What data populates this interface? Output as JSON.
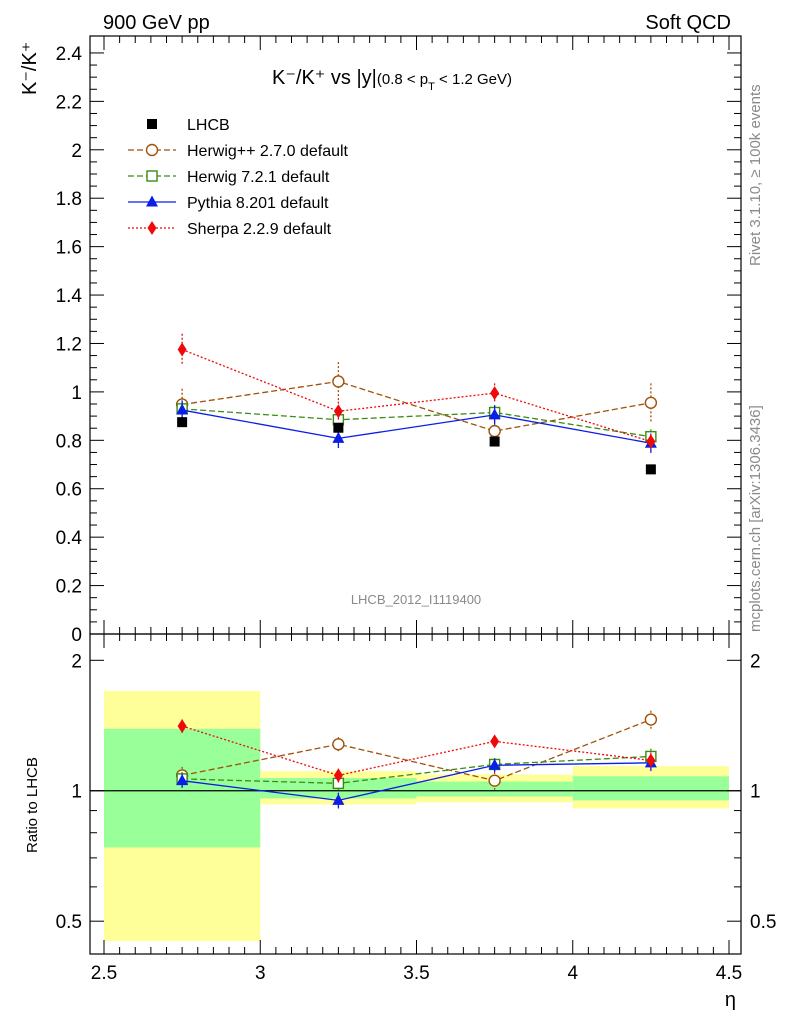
{
  "header": {
    "left": "900 GeV pp",
    "right": "Soft QCD"
  },
  "side_text": {
    "rivet": "Rivet 3.1.10, ≥ 100k events",
    "mcplots": "mcplots.cern.ch [arXiv:1306.3436]"
  },
  "colors": {
    "lhcb": "#000000",
    "herwigpp": "#a0520a",
    "herwig7": "#3a8c12",
    "pythia": "#0a1ee6",
    "sherpa": "#ee0a0a",
    "band_inner": "#99ff99",
    "band_outer": "#ffff99"
  },
  "chart_data": [
    {
      "type": "line",
      "title": "K⁻/K⁺ vs |y|(0.8 < pT < 1.2 GeV)",
      "title_parts": {
        "main": "K⁻/K⁺ vs |y|",
        "cut": "(0.8 < p",
        "sub": "T",
        "cut_end": " < 1.2 GeV)"
      },
      "ylabel": "K⁻/K⁺",
      "xlabel": "η",
      "watermark": "LHCB_2012_I1119400",
      "xlim": [
        2.5,
        4.5
      ],
      "ylim": [
        0,
        2.47
      ],
      "yticks": [
        "0",
        "0.2",
        "0.4",
        "0.6",
        "0.8",
        "1",
        "1.2",
        "1.4",
        "1.6",
        "1.8",
        "2",
        "2.2",
        "2.4"
      ],
      "x": [
        2.75,
        3.25,
        3.75,
        4.25
      ],
      "series": [
        {
          "name": "LHCB",
          "marker": "square-filled",
          "values": [
            0.875,
            0.852,
            0.795,
            0.68
          ],
          "err": [
            0.02,
            0.02,
            0.02,
            0.01
          ]
        },
        {
          "name": "Herwig++ 2.7.0 default",
          "marker": "circle-open",
          "style": "dashed",
          "values": [
            0.948,
            1.043,
            0.838,
            0.955
          ],
          "err": [
            0.065,
            0.08,
            0.06,
            0.08
          ]
        },
        {
          "name": "Herwig 7.2.1 default",
          "marker": "square-open",
          "style": "dashed",
          "values": [
            0.93,
            0.885,
            0.915,
            0.815
          ],
          "err": [
            0.03,
            0.03,
            0.03,
            0.03
          ]
        },
        {
          "name": "Pythia 8.201 default",
          "marker": "triangle-filled",
          "style": "solid",
          "values": [
            0.925,
            0.808,
            0.905,
            0.788
          ],
          "err": [
            0.04,
            0.04,
            0.04,
            0.04
          ]
        },
        {
          "name": "Sherpa 2.2.9 default",
          "marker": "diamond-filled",
          "style": "dotted",
          "values": [
            1.175,
            0.92,
            0.995,
            0.795
          ],
          "err": [
            0.065,
            0.04,
            0.04,
            0.03
          ]
        }
      ]
    },
    {
      "type": "line",
      "ylabel": "Ratio to LHCB",
      "xlabel": "η",
      "xlim": [
        2.5,
        4.5
      ],
      "ylim": [
        0.42,
        2.3
      ],
      "yscale": "log",
      "yticks": [
        "0.5",
        "1",
        "2"
      ],
      "xticks": [
        "2.5",
        "3",
        "3.5",
        "4",
        "4.5"
      ],
      "x": [
        2.75,
        3.25,
        3.75,
        4.25
      ],
      "bands": [
        {
          "xmin": 2.5,
          "xmax": 3.0,
          "inner": [
            0.74,
            1.39
          ],
          "outer": [
            0.45,
            1.7
          ]
        },
        {
          "xmin": 3.0,
          "xmax": 3.5,
          "inner": [
            0.96,
            1.07
          ],
          "outer": [
            0.93,
            1.11
          ]
        },
        {
          "xmin": 3.5,
          "xmax": 4.0,
          "inner": [
            0.97,
            1.05
          ],
          "outer": [
            0.94,
            1.09
          ]
        },
        {
          "xmin": 4.0,
          "xmax": 4.5,
          "inner": [
            0.95,
            1.08
          ],
          "outer": [
            0.91,
            1.14
          ]
        }
      ],
      "series": [
        {
          "name": "Herwig++ 2.7.0 default",
          "values": [
            1.085,
            1.28,
            1.055,
            1.46
          ],
          "err": [
            0.05,
            0.05,
            0.05,
            0.07
          ]
        },
        {
          "name": "Herwig 7.2.1 default",
          "values": [
            1.065,
            1.04,
            1.15,
            1.2
          ],
          "err": [
            0.04,
            0.04,
            0.04,
            0.05
          ]
        },
        {
          "name": "Pythia 8.201 default",
          "values": [
            1.055,
            0.95,
            1.145,
            1.16
          ],
          "err": [
            0.04,
            0.04,
            0.04,
            0.05
          ]
        },
        {
          "name": "Sherpa 2.2.9 default",
          "values": [
            1.41,
            1.085,
            1.3,
            1.175
          ],
          "err": [
            0.05,
            0.04,
            0.04,
            0.05
          ]
        }
      ]
    }
  ]
}
